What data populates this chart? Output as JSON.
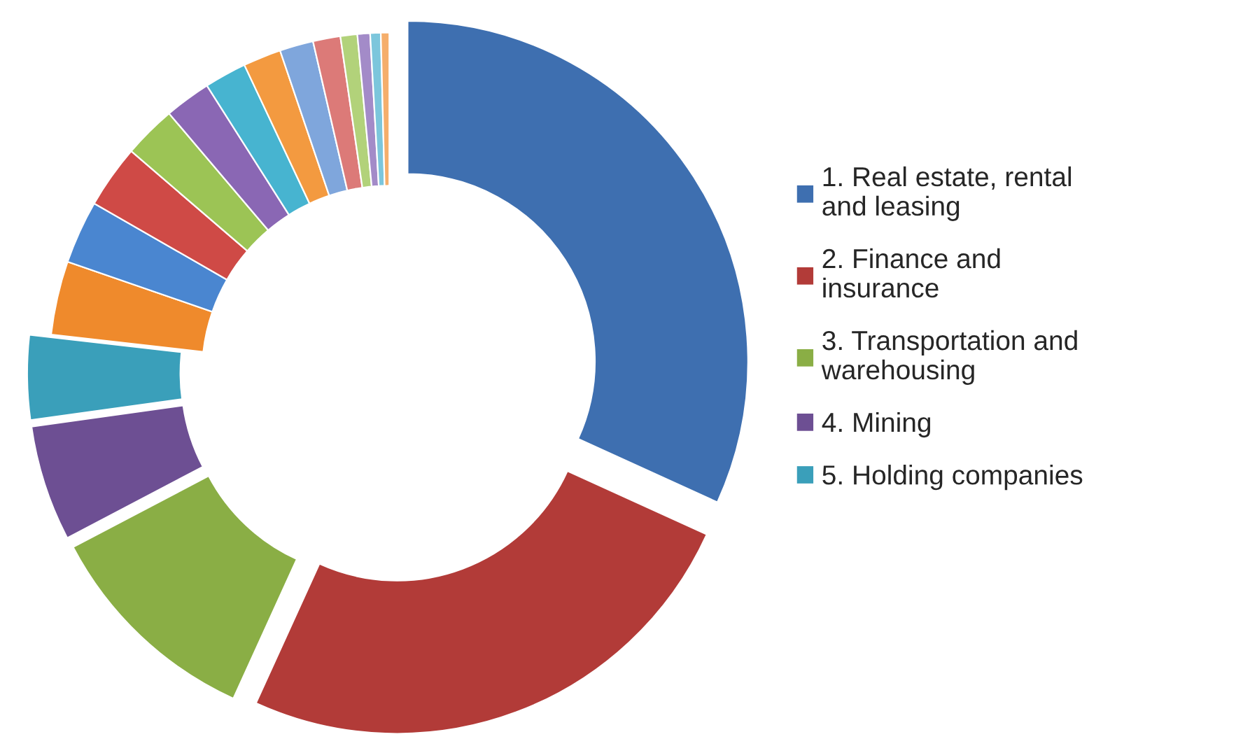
{
  "chart_data": {
    "type": "donut",
    "categories": [
      "1. Real estate, rental and leasing",
      "2. Finance and insurance",
      "3. Transportation and warehousing",
      "4. Mining",
      "5. Holding companies",
      null,
      null,
      null,
      null,
      null,
      null,
      null,
      null,
      null,
      null,
      null,
      null,
      null
    ],
    "values": [
      31.8,
      25,
      10.5,
      5.5,
      4,
      3.5,
      3,
      3,
      2.5,
      2.2,
      2,
      1.8,
      1.6,
      1.3,
      0.8,
      0.6,
      0.5,
      0.4
    ],
    "colors": [
      "#3e6fb0",
      "#b23b38",
      "#8aae45",
      "#6d4f93",
      "#3a9fba",
      "#ef8a2c",
      "#4a86d0",
      "#cf4a46",
      "#9cc455",
      "#8a67b4",
      "#47b4d0",
      "#f39a40",
      "#7fa6dc",
      "#dc7a78",
      "#b2d27a",
      "#a38bc8",
      "#7cc6dc",
      "#f5ae6b"
    ],
    "legend": "right"
  }
}
